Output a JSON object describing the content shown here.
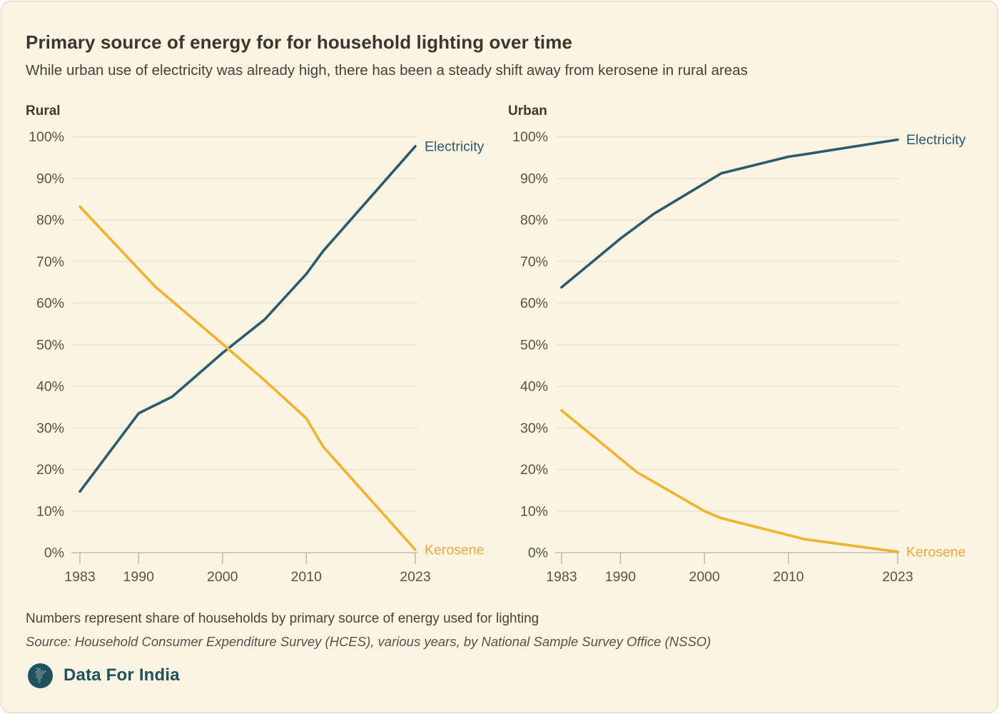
{
  "card": {
    "title": "Primary source of energy for for household lighting over time",
    "subtitle": "While urban use of electricity was already high, there has been a steady shift away from kerosene in rural areas",
    "footnote": "Numbers represent share of households by primary source of energy used for lighting",
    "source": "Source: Household Consumer Expenditure Survey (HCES), various years, by National Sample Survey Office (NSSO)",
    "brand": "Data For India"
  },
  "colors": {
    "page_outside": "#ffffff",
    "card_background": "#fbf4e2",
    "card_border": "#d8d2c4",
    "gridline": "#e7dfcc",
    "axis_line": "#c4bdac",
    "tick_text": "#57534a",
    "title_text": "#3a372f",
    "electricity": "#2b5c6e",
    "kerosene": "#f1b32e",
    "electricity_label": "#2e586c",
    "kerosene_label": "#f0a63c",
    "brand": "#1f515e"
  },
  "chart_data": [
    {
      "type": "line",
      "title": "Rural",
      "xlabel": "",
      "ylabel": "",
      "x_range": [
        1983,
        2023
      ],
      "x_ticks": [
        1983,
        1990,
        2000,
        2010,
        2023
      ],
      "ylim": [
        0,
        100
      ],
      "y_tick_step": 10,
      "y_tick_suffix": "%",
      "grid": true,
      "legend_position": "line-end-labels",
      "series": [
        {
          "name": "Electricity",
          "color": "#2b5c6e",
          "label_color": "#2e586c",
          "points": [
            [
              1983,
              14.7
            ],
            [
              1990,
              33.5
            ],
            [
              1994,
              37.5
            ],
            [
              2000,
              48.0
            ],
            [
              2005,
              56.0
            ],
            [
              2010,
              67.0
            ],
            [
              2012,
              72.5
            ],
            [
              2023,
              97.7
            ]
          ]
        },
        {
          "name": "Kerosene",
          "color": "#f1b32e",
          "label_color": "#f0a63c",
          "points": [
            [
              1983,
              83.2
            ],
            [
              1992,
              63.9
            ],
            [
              2000,
              50.2
            ],
            [
              2005,
              41.5
            ],
            [
              2010,
              32.3
            ],
            [
              2012,
              25.5
            ],
            [
              2023,
              0.7
            ]
          ]
        }
      ]
    },
    {
      "type": "line",
      "title": "Urban",
      "xlabel": "",
      "ylabel": "",
      "x_range": [
        1983,
        2023
      ],
      "x_ticks": [
        1983,
        1990,
        2000,
        2010,
        2023
      ],
      "ylim": [
        0,
        100
      ],
      "y_tick_step": 10,
      "y_tick_suffix": "%",
      "grid": true,
      "legend_position": "line-end-labels",
      "series": [
        {
          "name": "Electricity",
          "color": "#2b5c6e",
          "label_color": "#2e586c",
          "points": [
            [
              1983,
              63.8
            ],
            [
              1990,
              75.5
            ],
            [
              1994,
              81.5
            ],
            [
              2002,
              91.2
            ],
            [
              2010,
              95.2
            ],
            [
              2012,
              95.8
            ],
            [
              2023,
              99.3
            ]
          ]
        },
        {
          "name": "Kerosene",
          "color": "#f1b32e",
          "label_color": "#f0a63c",
          "points": [
            [
              1983,
              34.2
            ],
            [
              1992,
              19.3
            ],
            [
              2000,
              10.0
            ],
            [
              2002,
              8.3
            ],
            [
              2012,
              3.2
            ],
            [
              2023,
              0.2
            ]
          ]
        }
      ]
    }
  ]
}
